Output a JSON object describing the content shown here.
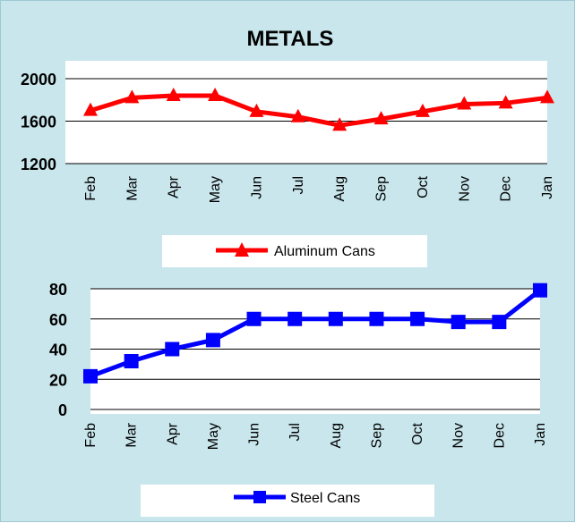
{
  "chart_data": [
    {
      "type": "line",
      "title": "METALS",
      "categories": [
        "Feb",
        "Mar",
        "Apr",
        "May",
        "Jun",
        "Jul",
        "Aug",
        "Sep",
        "Oct",
        "Nov",
        "Dec",
        "Jan"
      ],
      "series": [
        {
          "name": "Aluminum Cans",
          "values": [
            1700,
            1820,
            1840,
            1840,
            1690,
            1640,
            1560,
            1620,
            1690,
            1760,
            1770,
            1820
          ],
          "color": "#ff0000",
          "marker": "triangle"
        }
      ],
      "ylim": [
        1200,
        2000
      ],
      "yticks": [
        1200,
        1600,
        2000
      ],
      "grid": true,
      "legend": "bottom"
    },
    {
      "type": "line",
      "title": "",
      "categories": [
        "Feb",
        "Mar",
        "Apr",
        "May",
        "Jun",
        "Jul",
        "Aug",
        "Sep",
        "Oct",
        "Nov",
        "Dec",
        "Jan"
      ],
      "series": [
        {
          "name": "Steel Cans",
          "values": [
            22,
            32,
            40,
            46,
            60,
            60,
            60,
            60,
            60,
            58,
            58,
            79
          ],
          "color": "#0000ff",
          "marker": "square"
        }
      ],
      "ylim": [
        0,
        80
      ],
      "yticks": [
        0,
        20,
        40,
        60,
        80
      ],
      "grid": true,
      "legend": "bottom"
    }
  ]
}
